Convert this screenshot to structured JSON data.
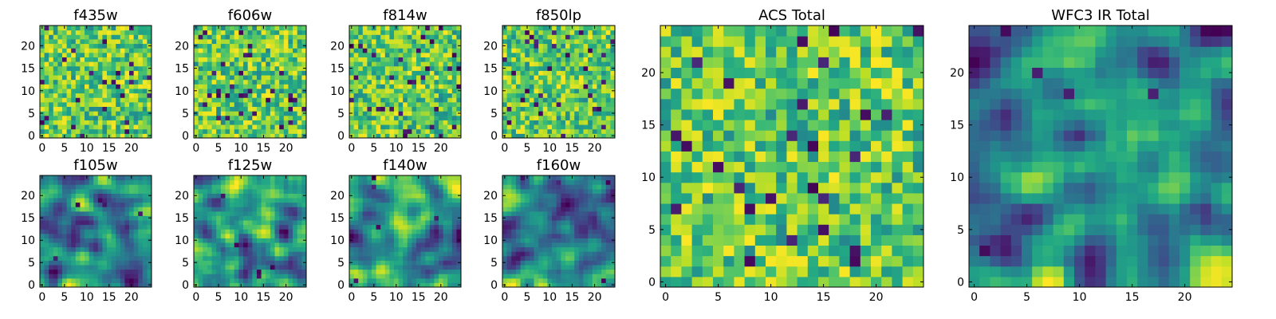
{
  "chart_data": {
    "type": "heatmap",
    "colormap": "viridis",
    "grid_size": 25,
    "panels": [
      {
        "name": "f435w",
        "title": "f435w",
        "xticks": [
          0,
          5,
          10,
          15,
          20
        ],
        "yticks": [
          0,
          5,
          10,
          15,
          20
        ],
        "texture": "noise"
      },
      {
        "name": "f606w",
        "title": "f606w",
        "xticks": [
          0,
          5,
          10,
          15,
          20
        ],
        "yticks": [
          0,
          5,
          10,
          15,
          20
        ],
        "texture": "noise"
      },
      {
        "name": "f814w",
        "title": "f814w",
        "xticks": [
          0,
          5,
          10,
          15,
          20
        ],
        "yticks": [
          0,
          5,
          10,
          15,
          20
        ],
        "texture": "noise"
      },
      {
        "name": "f850lp",
        "title": "f850lp",
        "xticks": [
          0,
          5,
          10,
          15,
          20
        ],
        "yticks": [
          0,
          5,
          10,
          15,
          20
        ],
        "texture": "noise"
      },
      {
        "name": "f105w",
        "title": "f105w",
        "xticks": [
          0,
          5,
          10,
          15,
          20
        ],
        "yticks": [
          0,
          5,
          10,
          15,
          20
        ],
        "texture": "smooth"
      },
      {
        "name": "f125w",
        "title": "f125w",
        "xticks": [
          0,
          5,
          10,
          15,
          20
        ],
        "yticks": [
          0,
          5,
          10,
          15,
          20
        ],
        "texture": "smooth"
      },
      {
        "name": "f140w",
        "title": "f140w",
        "xticks": [
          0,
          5,
          10,
          15,
          20
        ],
        "yticks": [
          0,
          5,
          10,
          15,
          20
        ],
        "texture": "smooth"
      },
      {
        "name": "f160w",
        "title": "f160w",
        "xticks": [
          0,
          5,
          10,
          15,
          20
        ],
        "yticks": [
          0,
          5,
          10,
          15,
          20
        ],
        "texture": "smooth"
      },
      {
        "name": "acs-total",
        "title": "ACS Total",
        "xticks": [
          0,
          5,
          10,
          15,
          20
        ],
        "yticks": [
          0,
          5,
          10,
          15,
          20
        ],
        "texture": "noise"
      },
      {
        "name": "wfc3-ir-total",
        "title": "WFC3 IR Total",
        "xticks": [
          0,
          5,
          10,
          15,
          20
        ],
        "yticks": [
          0,
          5,
          10,
          15,
          20
        ],
        "texture": "smooth"
      }
    ]
  }
}
